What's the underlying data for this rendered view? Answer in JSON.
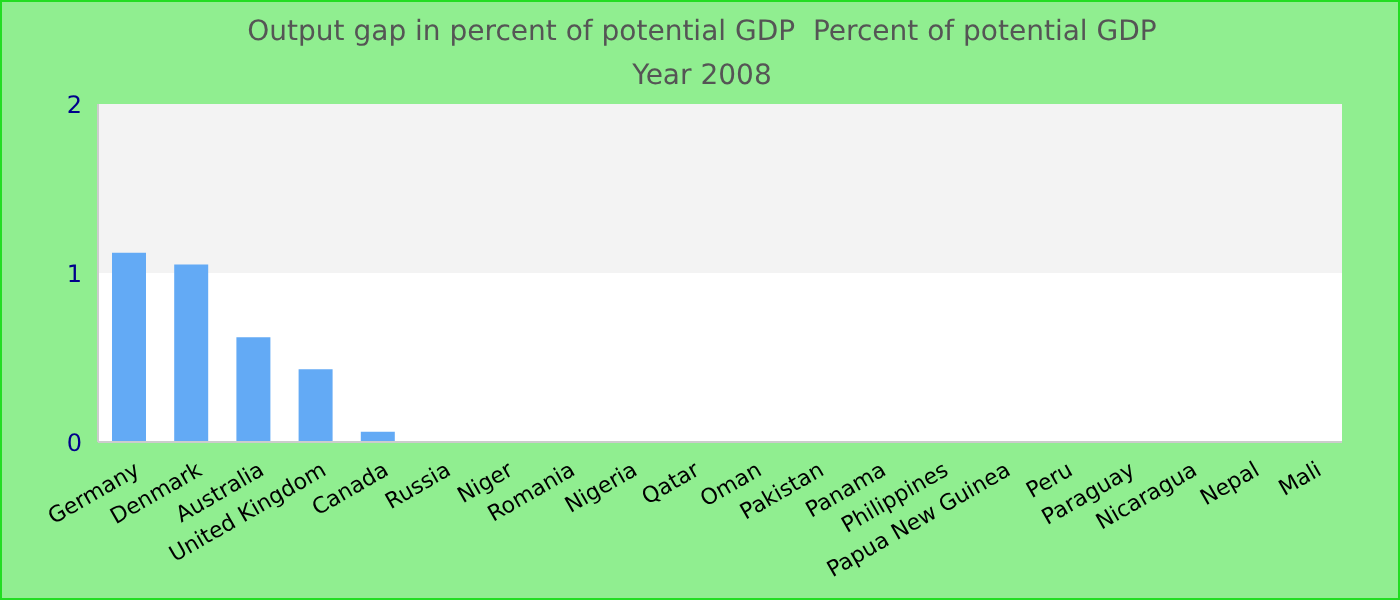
{
  "chart_data": {
    "type": "bar",
    "title": "Output gap in percent of potential GDP  Percent of potential GDP",
    "subtitle": "Year 2008",
    "categories": [
      "Germany",
      "Denmark",
      "Australia",
      "United Kingdom",
      "Canada",
      "Russia",
      "Niger",
      "Romania",
      "Nigeria",
      "Qatar",
      "Oman",
      "Pakistan",
      "Panama",
      "Philippines",
      "Papua New Guinea",
      "Peru",
      "Paraguay",
      "Nicaragua",
      "Nepal",
      "Mali"
    ],
    "values": [
      1.12,
      1.05,
      0.62,
      0.43,
      0.06,
      null,
      null,
      null,
      null,
      null,
      null,
      null,
      null,
      null,
      null,
      null,
      null,
      null,
      null,
      null
    ],
    "color": "#63aaf5",
    "ylim": [
      0,
      2
    ],
    "yticks": [
      0,
      1,
      2
    ],
    "bands": [
      {
        "axis": "y",
        "from": 1,
        "to": 2,
        "color": "#f3f3f3"
      }
    ]
  }
}
